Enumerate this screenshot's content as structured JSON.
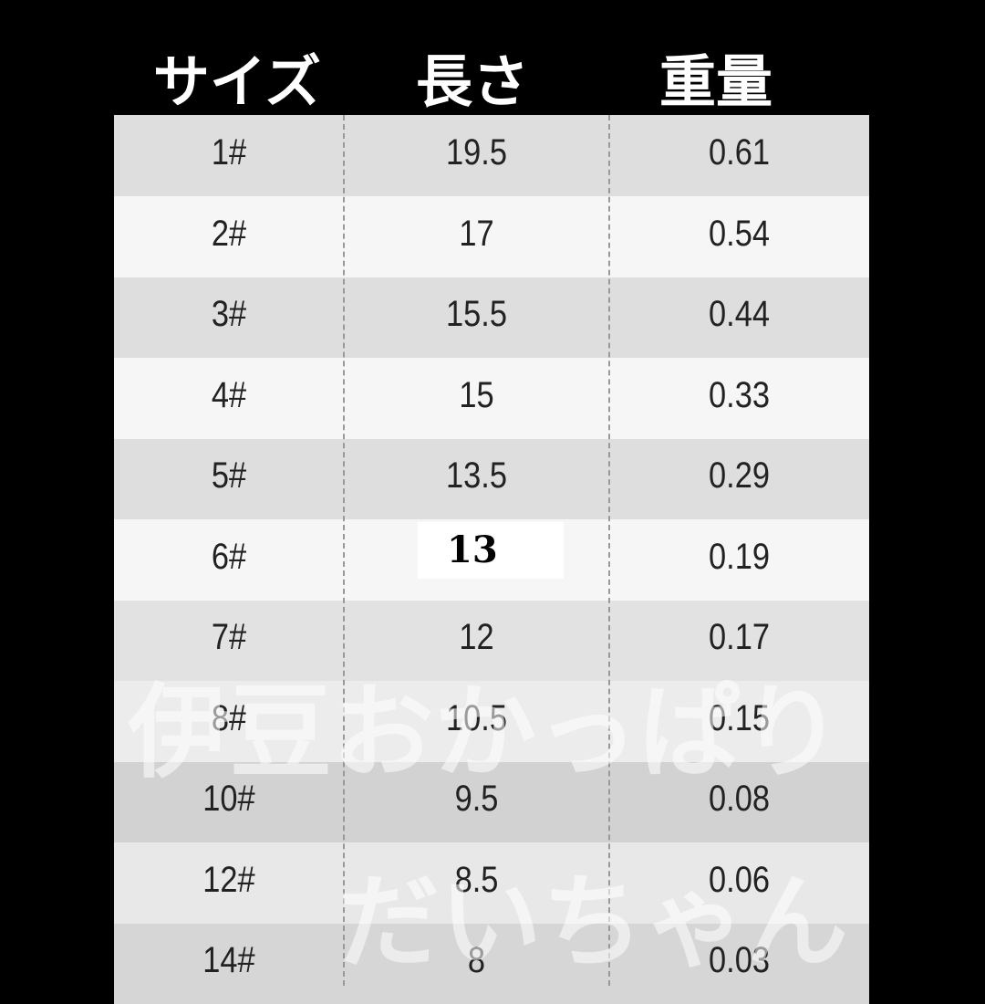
{
  "headers": [
    "サイズ",
    "長さ",
    "重量"
  ],
  "rows": [
    {
      "size": "1#",
      "length": "19.5",
      "weight": "0.61"
    },
    {
      "size": "2#",
      "length": "17",
      "weight": "0.54"
    },
    {
      "size": "3#",
      "length": "15.5",
      "weight": "0.44"
    },
    {
      "size": "4#",
      "length": "15",
      "weight": "0.33"
    },
    {
      "size": "5#",
      "length": "13.5",
      "weight": "0.29"
    },
    {
      "size": "6#",
      "length": "13",
      "weight": "0.19"
    },
    {
      "size": "7#",
      "length": "12",
      "weight": "0.17"
    },
    {
      "size": "8#",
      "length": "10.5",
      "weight": "0.15"
    },
    {
      "size": "10#",
      "length": "9.5",
      "weight": "0.08"
    },
    {
      "size": "12#",
      "length": "8.5",
      "weight": "0.06"
    },
    {
      "size": "14#",
      "length": "8",
      "weight": "0.03"
    }
  ],
  "highlight": "13",
  "watermark": {
    "line1": "伊豆おかっぱり",
    "line2": "だいちゃん"
  },
  "colors": {
    "background": "#000000",
    "row_dark": "#dedede",
    "row_light": "#f5f5f5",
    "text": "#222222"
  }
}
